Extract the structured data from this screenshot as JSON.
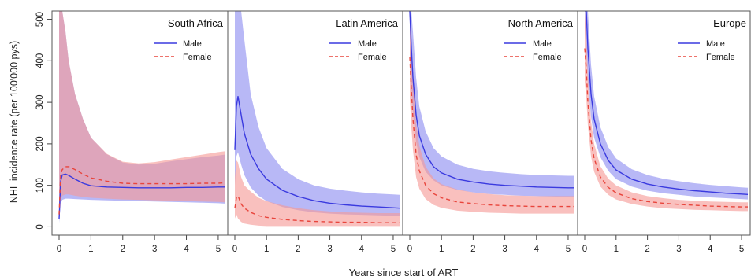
{
  "chart_data": {
    "type": "line",
    "xlabel": "Years since start of ART",
    "ylabel": "NHL incidence rate (per 100'000 pys)",
    "xlim": [
      0,
      5.2
    ],
    "ylim": [
      -20,
      520
    ],
    "y_ticks": [
      0,
      100,
      200,
      300,
      400,
      500
    ],
    "x_ticks": [
      0,
      1,
      2,
      3,
      4,
      5
    ],
    "x_tick_labels": [
      "0",
      "1",
      "2",
      "3",
      "4",
      "5"
    ],
    "y_tick_labels": [
      "0",
      "100",
      "200",
      "300",
      "400",
      "500"
    ],
    "legend_position": "top-right",
    "legend": [
      {
        "name": "Male",
        "color": "#3a3adf",
        "dash": "solid"
      },
      {
        "name": "Female",
        "color": "#e8453c",
        "dash": "dashed"
      }
    ],
    "colors": {
      "male_line": "#3a3adf",
      "female_line": "#e8453c",
      "male_band": "#8c8cf0",
      "female_band": "#f59a96"
    },
    "x": [
      0,
      0.05,
      0.1,
      0.2,
      0.3,
      0.5,
      0.75,
      1,
      1.5,
      2,
      2.5,
      3,
      3.5,
      4,
      4.5,
      5,
      5.2
    ],
    "panels": [
      {
        "title": "South Africa",
        "series": [
          {
            "name": "Male",
            "values": [
              18,
              110,
              125,
              127,
              124,
              115,
              105,
              99,
              96,
              95,
              94,
              94,
              94,
              95,
              95,
              96,
              96
            ],
            "lower": [
              10,
              55,
              65,
              68,
              68,
              67,
              66,
              65,
              64,
              63,
              62,
              61,
              60,
              59,
              58,
              57,
              56
            ],
            "upper": [
              520,
              520,
              520,
              470,
              400,
              320,
              260,
              215,
              175,
              155,
              150,
              152,
              158,
              163,
              168,
              172,
              174
            ]
          },
          {
            "name": "Female",
            "values": [
              30,
              125,
              138,
              145,
              145,
              138,
              127,
              118,
              110,
              105,
              104,
              104,
              104,
              104,
              105,
              105,
              106
            ],
            "lower": [
              15,
              65,
              75,
              78,
              78,
              75,
              72,
              70,
              68,
              66,
              65,
              64,
              63,
              62,
              61,
              60,
              59
            ],
            "upper": [
              520,
              520,
              520,
              470,
              400,
              320,
              260,
              215,
              176,
              157,
              153,
              156,
              162,
              168,
              174,
              180,
              182
            ]
          }
        ]
      },
      {
        "title": "Latin America",
        "series": [
          {
            "name": "Male",
            "values": [
              185,
              290,
              315,
              270,
              225,
              175,
              140,
              115,
              88,
              73,
              63,
              57,
              53,
              50,
              48,
              46,
              45
            ],
            "lower": [
              100,
              170,
              180,
              150,
              125,
              95,
              75,
              62,
              48,
              40,
              35,
              32,
              30,
              29,
              28,
              27,
              27
            ],
            "upper": [
              520,
              520,
              520,
              520,
              450,
              320,
              240,
              190,
              140,
              115,
              100,
              92,
              87,
              83,
              80,
              78,
              77
            ]
          },
          {
            "name": "Female",
            "values": [
              45,
              70,
              75,
              55,
              45,
              35,
              27,
              23,
              18,
              15,
              13,
              12,
              11,
              11,
              10,
              10,
              10
            ],
            "lower": [
              20,
              30,
              20,
              12,
              8,
              5,
              3,
              2,
              2,
              2,
              2,
              2,
              2,
              2,
              2,
              2,
              2
            ],
            "upper": [
              120,
              160,
              155,
              120,
              100,
              85,
              70,
              62,
              52,
              45,
              40,
              37,
              35,
              34,
              33,
              33,
              33
            ]
          }
        ]
      },
      {
        "title": "North America",
        "series": [
          {
            "name": "Male",
            "values": [
              520,
              430,
              360,
              270,
              220,
              175,
              145,
              130,
              115,
              108,
              103,
              100,
              98,
              96,
              95,
              94,
              94
            ],
            "lower": [
              400,
              330,
              275,
              205,
              168,
              133,
              112,
              100,
              89,
              83,
              79,
              77,
              75,
              74,
              73,
              72,
              72
            ],
            "upper": [
              520,
              520,
              470,
              360,
              290,
              230,
              190,
              170,
              150,
              140,
              134,
              130,
              127,
              125,
              124,
              123,
              123
            ]
          },
          {
            "name": "Female",
            "values": [
              410,
              330,
              260,
              175,
              135,
              100,
              80,
              70,
              60,
              56,
              53,
              51,
              50,
              49,
              49,
              49,
              49
            ],
            "lower": [
              310,
              240,
              185,
              120,
              92,
              67,
              53,
              46,
              39,
              36,
              34,
              33,
              32,
              32,
              32,
              32,
              32
            ],
            "upper": [
              520,
              450,
              360,
              250,
              195,
              145,
              117,
              103,
              90,
              83,
              79,
              76,
              75,
              74,
              74,
              74,
              74
            ]
          }
        ]
      },
      {
        "title": "Europe",
        "series": [
          {
            "name": "Male",
            "values": [
              520,
              520,
              430,
              320,
              260,
              200,
              160,
              137,
              115,
              103,
              96,
              91,
              87,
              84,
              81,
              79,
              78
            ],
            "lower": [
              480,
              420,
              350,
              265,
              215,
              168,
              135,
              115,
              97,
              87,
              81,
              77,
              73,
              71,
              69,
              67,
              66
            ],
            "upper": [
              520,
              520,
              520,
              390,
              315,
              240,
              192,
              165,
              139,
              125,
              116,
              110,
              105,
              101,
              98,
              95,
              94
            ]
          },
          {
            "name": "Female",
            "values": [
              430,
              380,
              300,
              210,
              165,
              120,
              95,
              82,
              68,
              61,
              57,
              54,
              52,
              50,
              49,
              48,
              48
            ],
            "lower": [
              350,
              310,
              245,
              170,
              133,
              97,
              77,
              66,
              55,
              49,
              45,
              43,
              41,
              40,
              39,
              38,
              38
            ],
            "upper": [
              520,
              460,
              365,
              255,
              200,
              146,
              116,
              100,
              83,
              74,
              69,
              65,
              63,
              61,
              60,
              59,
              59
            ]
          }
        ]
      }
    ]
  }
}
